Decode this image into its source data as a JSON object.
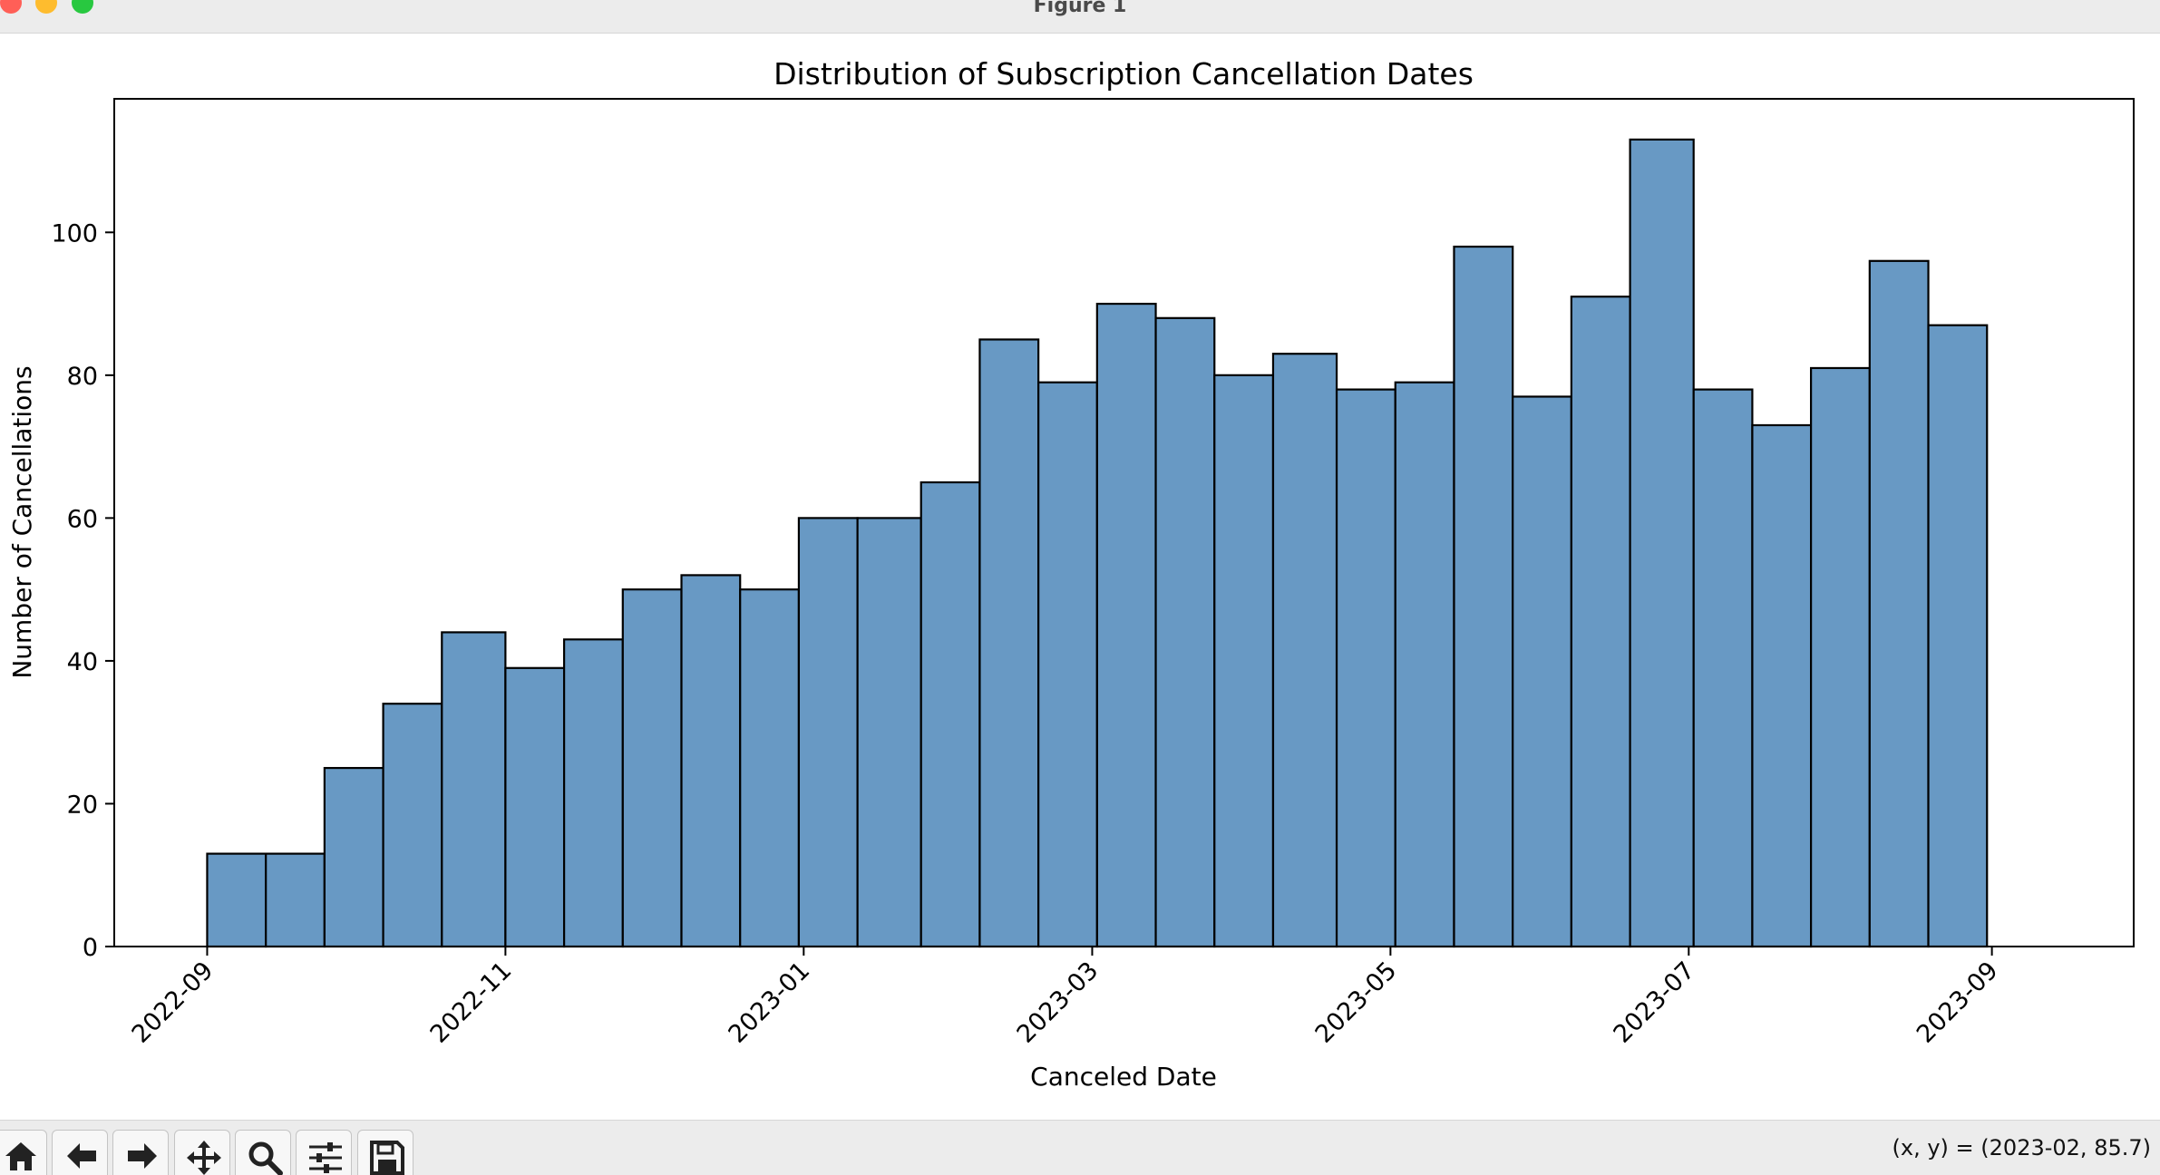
{
  "window": {
    "title": "Figure 1"
  },
  "toolbar": {
    "buttons": [
      {
        "icon": "home-icon"
      },
      {
        "icon": "back-arrow-icon"
      },
      {
        "icon": "forward-arrow-icon"
      },
      {
        "icon": "pan-icon"
      },
      {
        "icon": "zoom-icon"
      },
      {
        "icon": "configure-subplots-icon"
      },
      {
        "icon": "save-icon"
      }
    ],
    "coords_text": "(x, y) = (2023-02, 85.7)"
  },
  "colors": {
    "bar_fill": "#6899c4",
    "bar_edge": "#000000"
  },
  "chart_data": {
    "type": "bar",
    "title": "Distribution of Subscription Cancellation Dates",
    "xlabel": "Canceled Date",
    "ylabel": "Number of Cancellations",
    "x_scale": "date",
    "xlim": [
      "2022-08-13",
      "2023-09-30"
    ],
    "ylim": [
      0,
      118.7
    ],
    "x_ticks": [
      "2022-09",
      "2022-11",
      "2023-01",
      "2023-03",
      "2023-05",
      "2023-07",
      "2023-09"
    ],
    "y_ticks": [
      0,
      20,
      40,
      60,
      80,
      100
    ],
    "bins": [
      {
        "start": "2022-09-01",
        "end": "2022-09-13",
        "count": 13
      },
      {
        "start": "2022-09-13",
        "end": "2022-09-25",
        "count": 13
      },
      {
        "start": "2022-09-25",
        "end": "2022-10-07",
        "count": 25
      },
      {
        "start": "2022-10-07",
        "end": "2022-10-19",
        "count": 34
      },
      {
        "start": "2022-10-19",
        "end": "2022-11-01",
        "count": 44
      },
      {
        "start": "2022-11-01",
        "end": "2022-11-13",
        "count": 39
      },
      {
        "start": "2022-11-13",
        "end": "2022-11-25",
        "count": 43
      },
      {
        "start": "2022-11-25",
        "end": "2022-12-07",
        "count": 50
      },
      {
        "start": "2022-12-07",
        "end": "2022-12-19",
        "count": 52
      },
      {
        "start": "2022-12-19",
        "end": "2022-12-31",
        "count": 50
      },
      {
        "start": "2022-12-31",
        "end": "2023-01-12",
        "count": 60
      },
      {
        "start": "2023-01-12",
        "end": "2023-01-25",
        "count": 60
      },
      {
        "start": "2023-01-25",
        "end": "2023-02-06",
        "count": 65
      },
      {
        "start": "2023-02-06",
        "end": "2023-02-18",
        "count": 85
      },
      {
        "start": "2023-02-18",
        "end": "2023-03-02",
        "count": 79
      },
      {
        "start": "2023-03-02",
        "end": "2023-03-14",
        "count": 90
      },
      {
        "start": "2023-03-14",
        "end": "2023-03-26",
        "count": 88
      },
      {
        "start": "2023-03-26",
        "end": "2023-04-07",
        "count": 80
      },
      {
        "start": "2023-04-07",
        "end": "2023-04-20",
        "count": 83
      },
      {
        "start": "2023-04-20",
        "end": "2023-05-02",
        "count": 78
      },
      {
        "start": "2023-05-02",
        "end": "2023-05-14",
        "count": 79
      },
      {
        "start": "2023-05-14",
        "end": "2023-05-26",
        "count": 98
      },
      {
        "start": "2023-05-26",
        "end": "2023-06-07",
        "count": 77
      },
      {
        "start": "2023-06-07",
        "end": "2023-06-19",
        "count": 91
      },
      {
        "start": "2023-06-19",
        "end": "2023-07-02",
        "count": 113
      },
      {
        "start": "2023-07-02",
        "end": "2023-07-14",
        "count": 78
      },
      {
        "start": "2023-07-14",
        "end": "2023-07-26",
        "count": 73
      },
      {
        "start": "2023-07-26",
        "end": "2023-08-07",
        "count": 81
      },
      {
        "start": "2023-08-07",
        "end": "2023-08-19",
        "count": 96
      },
      {
        "start": "2023-08-19",
        "end": "2023-08-31",
        "count": 87
      }
    ]
  }
}
